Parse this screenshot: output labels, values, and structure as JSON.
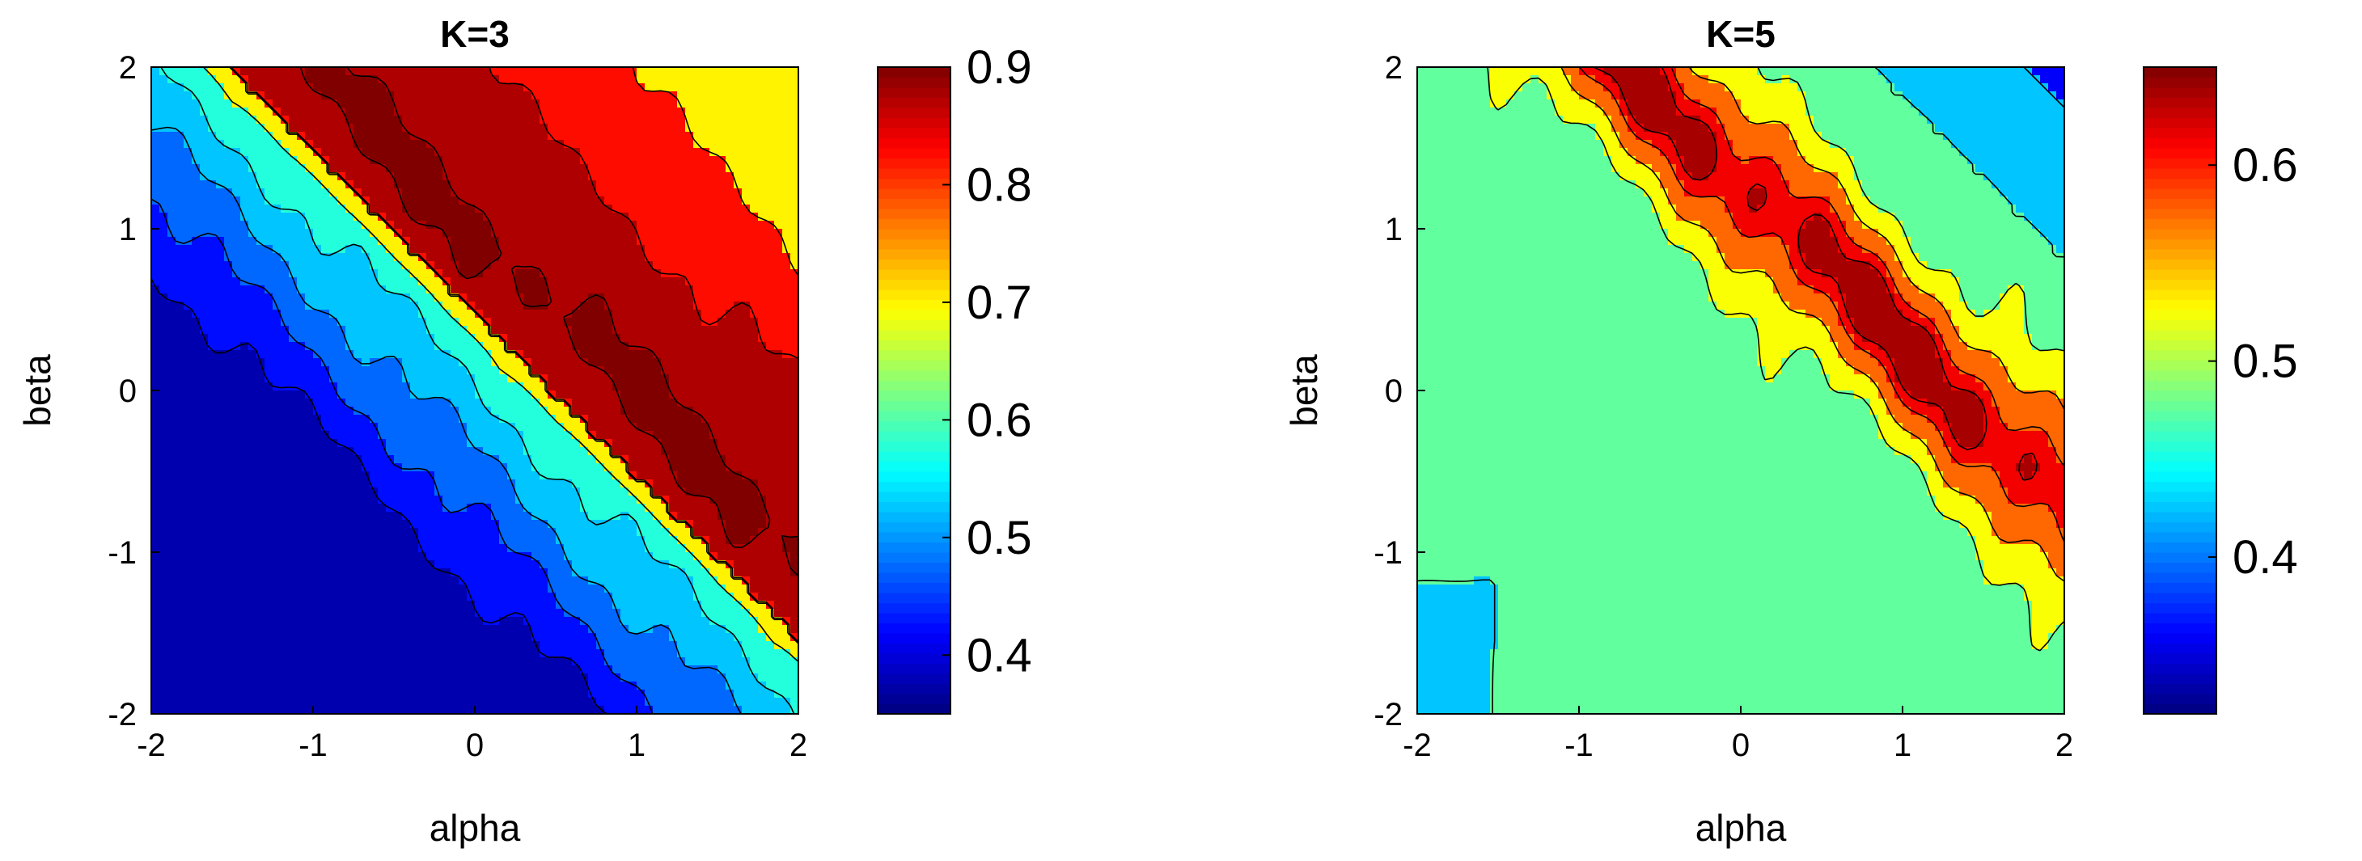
{
  "chart_data": [
    {
      "type": "contour",
      "title": "K=3",
      "xlabel": "alpha",
      "ylabel": "beta",
      "xlim": [
        -2,
        2
      ],
      "ylim": [
        -2,
        2
      ],
      "xticks": [
        "-2",
        "-1",
        "0",
        "1",
        "2"
      ],
      "yticks": [
        "-2",
        "-1",
        "0",
        "1",
        "2"
      ],
      "colorbar": {
        "range": [
          0.35,
          0.9
        ],
        "ticks": [
          "0.4",
          "0.5",
          "0.6",
          "0.7",
          "0.8",
          "0.9"
        ],
        "tick_values": [
          0.4,
          0.5,
          0.6,
          0.7,
          0.8,
          0.9
        ],
        "colormap": "jet"
      },
      "field": {
        "kind": "k3",
        "ridge_offset": 0.45,
        "levels": [
          0.4,
          0.45,
          0.5,
          0.55,
          0.6,
          0.8,
          0.85,
          0.9
        ]
      }
    },
    {
      "type": "contour",
      "title": "K=5",
      "xlabel": "alpha",
      "ylabel": "beta",
      "xlim": [
        -2,
        2
      ],
      "ylim": [
        -2,
        2
      ],
      "xticks": [
        "-2",
        "-1",
        "0",
        "1",
        "2"
      ],
      "yticks": [
        "-2",
        "-1",
        "0",
        "1",
        "2"
      ],
      "colorbar": {
        "range": [
          0.32,
          0.65
        ],
        "ticks": [
          "0.4",
          "0.5",
          "0.6"
        ],
        "tick_values": [
          0.4,
          0.5,
          0.6
        ],
        "colormap": "jet"
      },
      "field": {
        "kind": "k5",
        "ridge_offset": 1.3,
        "levels": [
          0.4,
          0.45,
          0.5,
          0.55,
          0.6,
          0.625
        ]
      }
    }
  ]
}
